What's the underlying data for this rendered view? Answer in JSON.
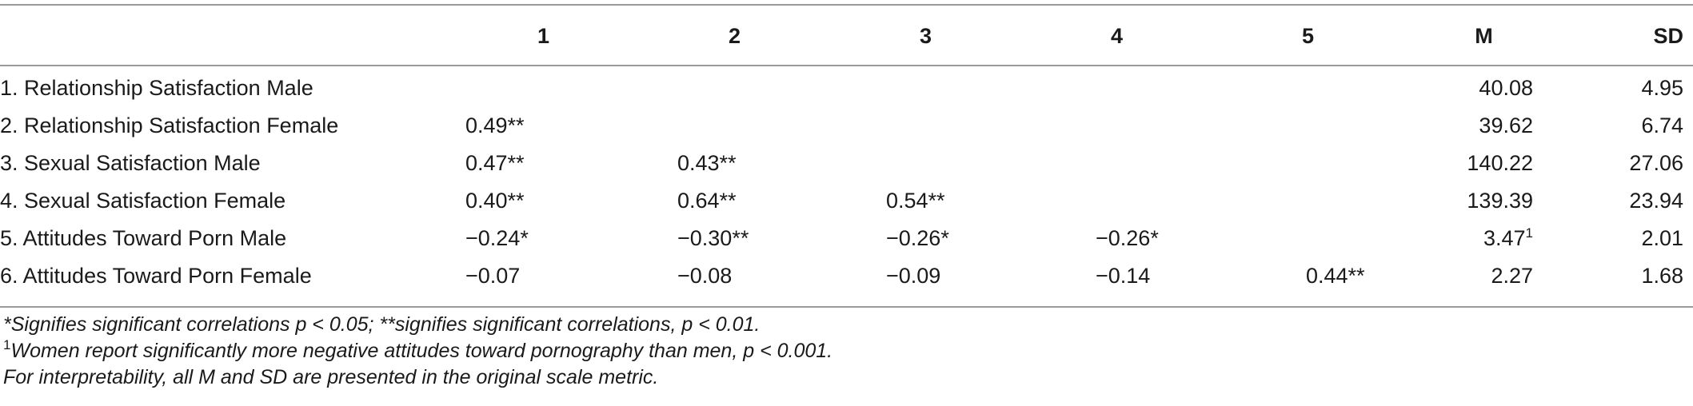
{
  "table": {
    "headers": [
      "",
      "1",
      "2",
      "3",
      "4",
      "5",
      "M",
      "SD"
    ],
    "rows": [
      {
        "label": "1. Relationship Satisfaction Male",
        "c1": "",
        "c2": "",
        "c3": "",
        "c4": "",
        "c5": "",
        "m": "40.08",
        "m_sup": "",
        "sd": "4.95"
      },
      {
        "label": "2. Relationship Satisfaction Female",
        "c1": "0.49**",
        "c2": "",
        "c3": "",
        "c4": "",
        "c5": "",
        "m": "39.62",
        "m_sup": "",
        "sd": "6.74"
      },
      {
        "label": "3. Sexual Satisfaction Male",
        "c1": "0.47**",
        "c2": "0.43**",
        "c3": "",
        "c4": "",
        "c5": "",
        "m": "140.22",
        "m_sup": "",
        "sd": "27.06"
      },
      {
        "label": "4. Sexual Satisfaction Female",
        "c1": "0.40**",
        "c2": "0.64**",
        "c3": "0.54**",
        "c4": "",
        "c5": "",
        "m": "139.39",
        "m_sup": "",
        "sd": "23.94"
      },
      {
        "label": "5. Attitudes Toward Porn Male",
        "c1": "−0.24*",
        "c2": "−0.30**",
        "c3": "−0.26*",
        "c4": "−0.26*",
        "c5": "",
        "m": "3.47",
        "m_sup": "1",
        "sd": "2.01"
      },
      {
        "label": "6. Attitudes Toward Porn Female",
        "c1": "−0.07",
        "c2": "−0.08",
        "c3": "−0.09",
        "c4": "−0.14",
        "c5": "0.44**",
        "m": "2.27",
        "m_sup": "",
        "sd": "1.68"
      }
    ]
  },
  "notes": {
    "line1": "*Signifies significant correlations p < 0.05; **signifies significant correlations, p < 0.01.",
    "line2_sup": "1",
    "line2": "Women report significantly more negative attitudes toward pornography than men, p < 0.001.",
    "line3": "For interpretability, all M and SD are presented in the original scale metric."
  }
}
